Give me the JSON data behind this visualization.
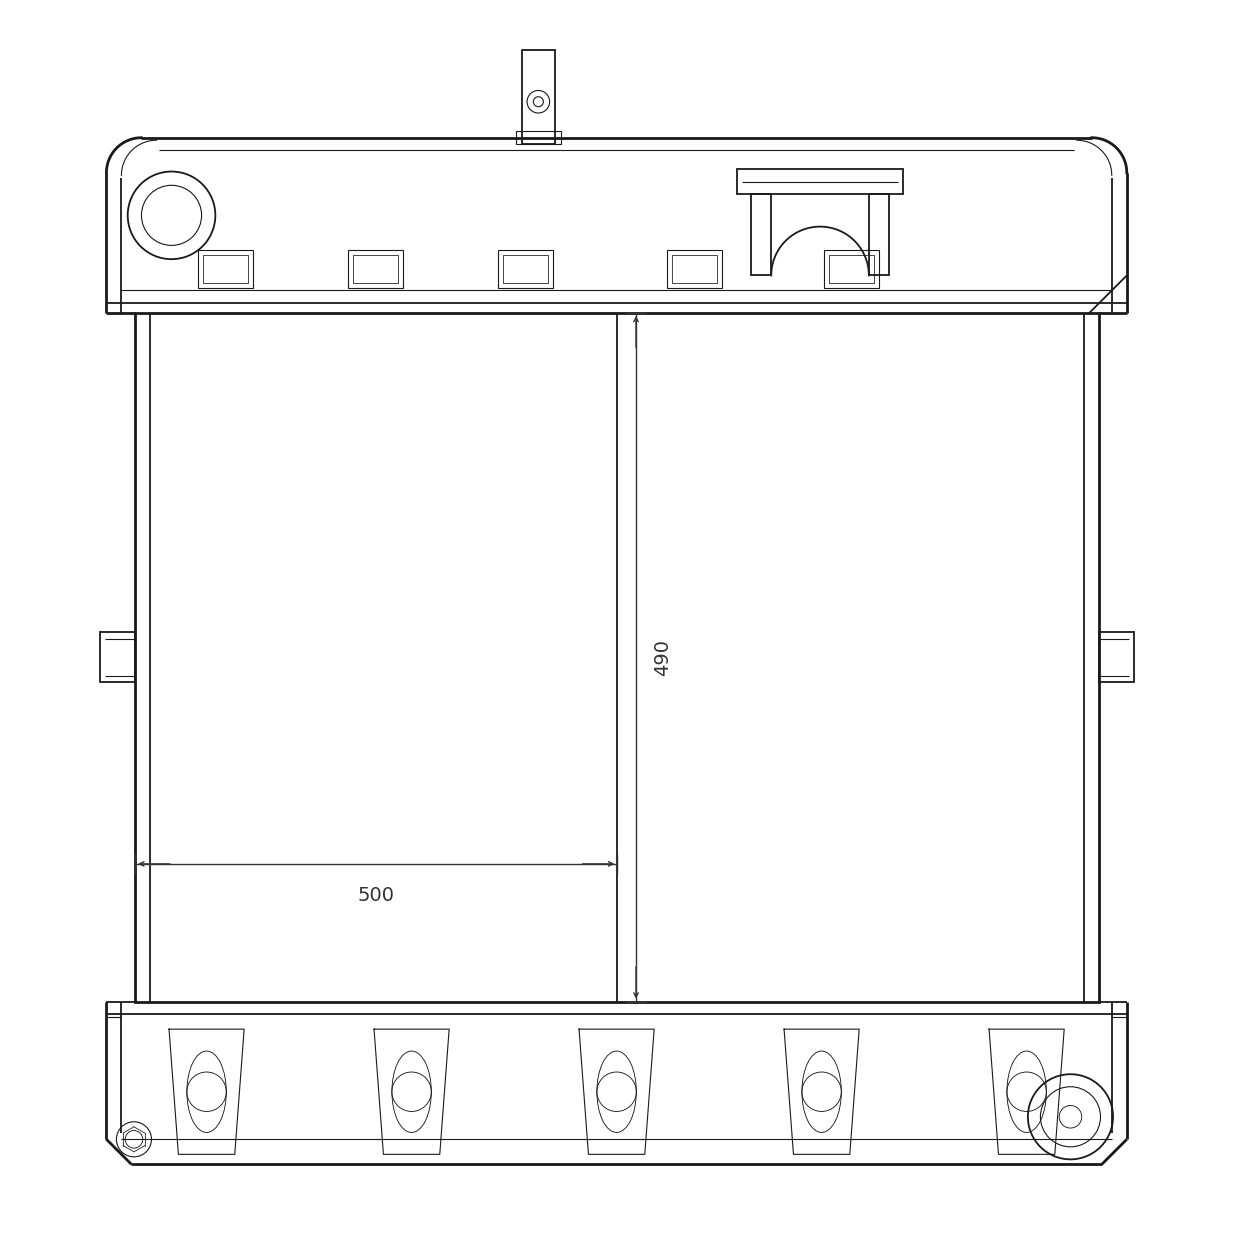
{
  "bg_color": "#ffffff",
  "line_color": "#1a1a1a",
  "dim_color": "#333333",
  "lw_main": 2.0,
  "lw_med": 1.3,
  "lw_thin": 0.8,
  "lw_dim": 1.0,
  "width_label": "500",
  "height_label": "490",
  "fig_w": 12.52,
  "fig_h": 12.52
}
